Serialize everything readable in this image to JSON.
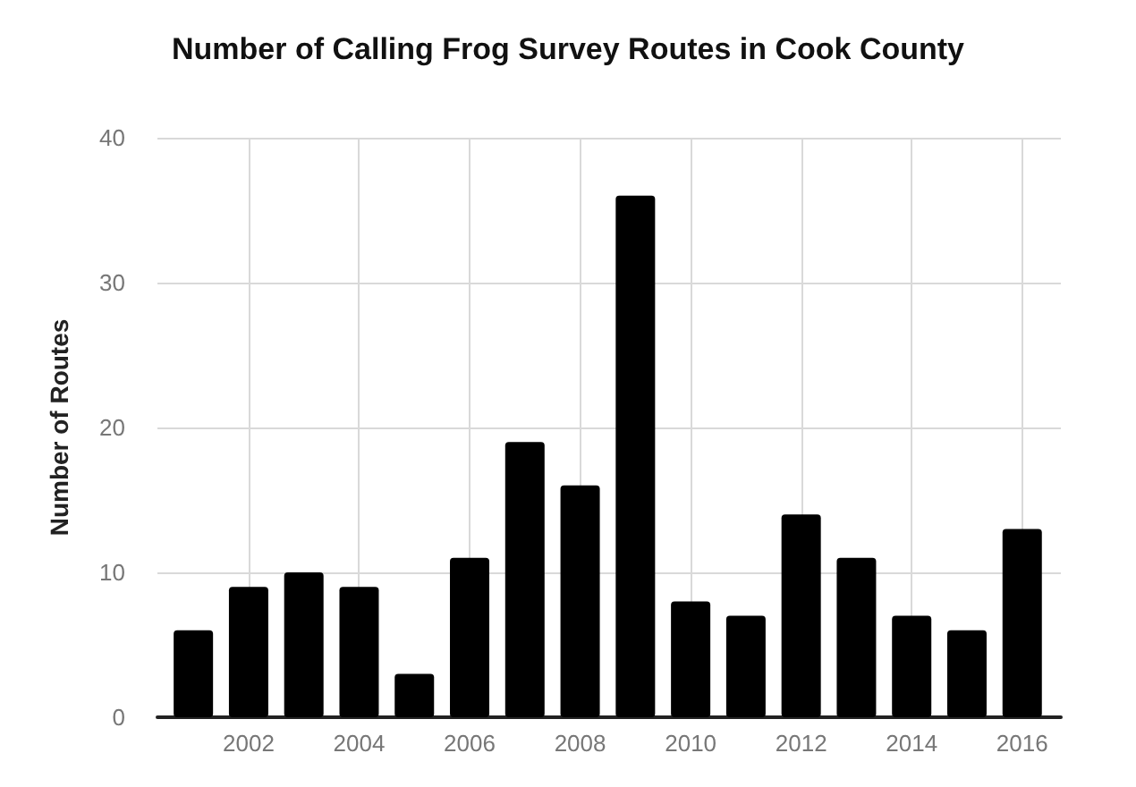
{
  "chart_data": {
    "type": "bar",
    "title": "Number of Calling Frog Survey Routes in Cook County",
    "ylabel": "Number of Routes",
    "x": [
      2001,
      2002,
      2003,
      2004,
      2005,
      2006,
      2007,
      2008,
      2009,
      2010,
      2011,
      2012,
      2013,
      2014,
      2015,
      2016
    ],
    "values": [
      6,
      9,
      10,
      9,
      3,
      11,
      19,
      16,
      36,
      8,
      7,
      14,
      11,
      7,
      6,
      13
    ],
    "color": "#000000",
    "xlim": [
      2000.35,
      2016.7
    ],
    "xticks": [
      2002,
      2004,
      2006,
      2008,
      2010,
      2012,
      2014,
      2016
    ],
    "ylim": [
      0,
      40
    ],
    "yticks": [
      0,
      10,
      20,
      30,
      40
    ],
    "grid": true
  }
}
